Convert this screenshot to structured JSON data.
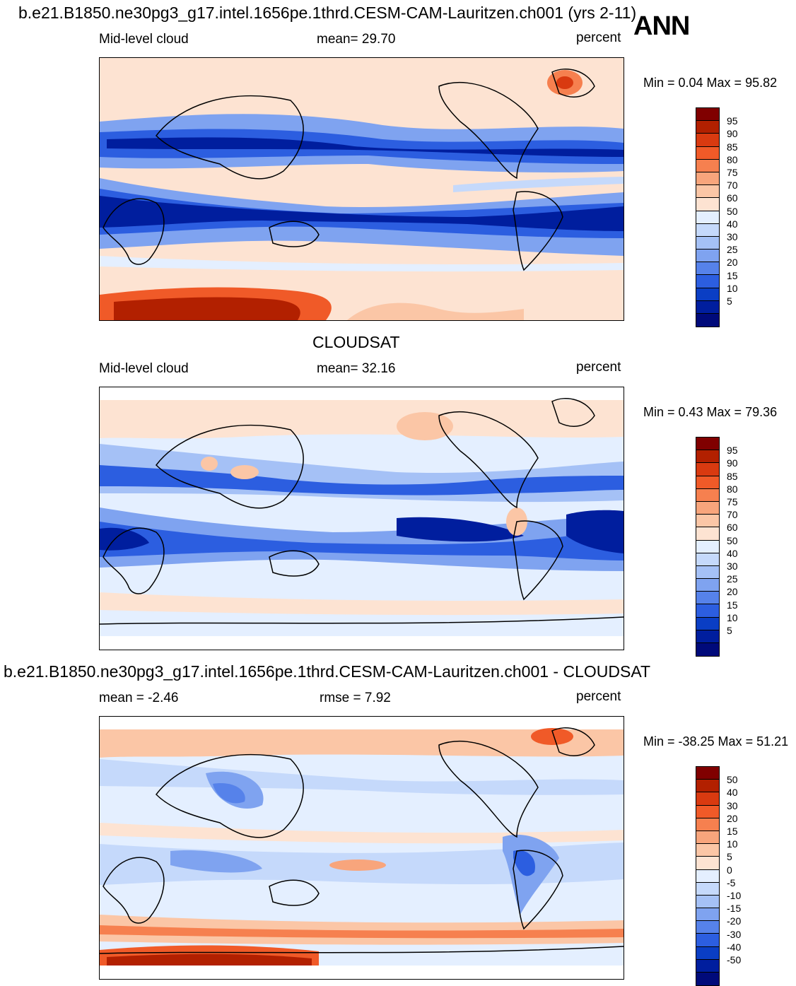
{
  "figure": {
    "main_title": "b.e21.B1850.ne30pg3_g17.intel.1656pe.1thrd.CESM-CAM-Lauritzen.ch001 (yrs 2-11)",
    "season": "ANN"
  },
  "panel1": {
    "left_label": "Mid-level cloud",
    "mean_label": "mean=  29.70",
    "units": "percent",
    "minmax": "Min =   0.04 Max =  95.82"
  },
  "panel2": {
    "title": "CLOUDSAT",
    "left_label": "Mid-level cloud",
    "mean_label": "mean=  32.16",
    "units": "percent",
    "minmax": "Min =   0.43 Max =  79.36"
  },
  "panel3": {
    "title": "b.e21.B1850.ne30pg3_g17.intel.1656pe.1thrd.CESM-CAM-Lauritzen.ch001 - CLOUDSAT",
    "mean_label": "mean =   -2.46",
    "rmse_label": "rmse =    7.92",
    "units": "percent",
    "minmax": "Min = -38.25 Max =  51.21"
  },
  "colorbar_abs": {
    "labels": [
      "95",
      "90",
      "85",
      "80",
      "75",
      "70",
      "60",
      "50",
      "40",
      "30",
      "25",
      "20",
      "15",
      "10",
      "5"
    ],
    "colors": [
      "#800000",
      "#b22000",
      "#d93a10",
      "#f05a28",
      "#f6804f",
      "#f8a57c",
      "#fbc6a6",
      "#fde3d2",
      "#e4efff",
      "#c5d9fb",
      "#a5c1f6",
      "#7fa3f0",
      "#5682ea",
      "#2c5ee0",
      "#0a3ec4",
      "#001e9e",
      "#000a7a"
    ]
  },
  "colorbar_diff": {
    "labels": [
      "50",
      "40",
      "30",
      "20",
      "15",
      "10",
      "5",
      "0",
      "-5",
      "-10",
      "-15",
      "-20",
      "-30",
      "-40",
      "-50"
    ],
    "colors": [
      "#800000",
      "#b22000",
      "#d93a10",
      "#f05a28",
      "#f6804f",
      "#f8a57c",
      "#fbc6a6",
      "#fde3d2",
      "#e4efff",
      "#c5d9fb",
      "#a5c1f6",
      "#7fa3f0",
      "#5682ea",
      "#2c5ee0",
      "#0a3ec4",
      "#001e9e",
      "#000a7a"
    ]
  },
  "map_palette": {
    "deep_blue": "#001e9e",
    "blue": "#2c5ee0",
    "mid_blue": "#7fa3f0",
    "light_blue": "#c5d9fb",
    "pale_blue": "#e4efff",
    "pale_red": "#fde3d2",
    "light_red": "#fbc6a6",
    "red": "#f05a28",
    "dark_red": "#b22000"
  }
}
